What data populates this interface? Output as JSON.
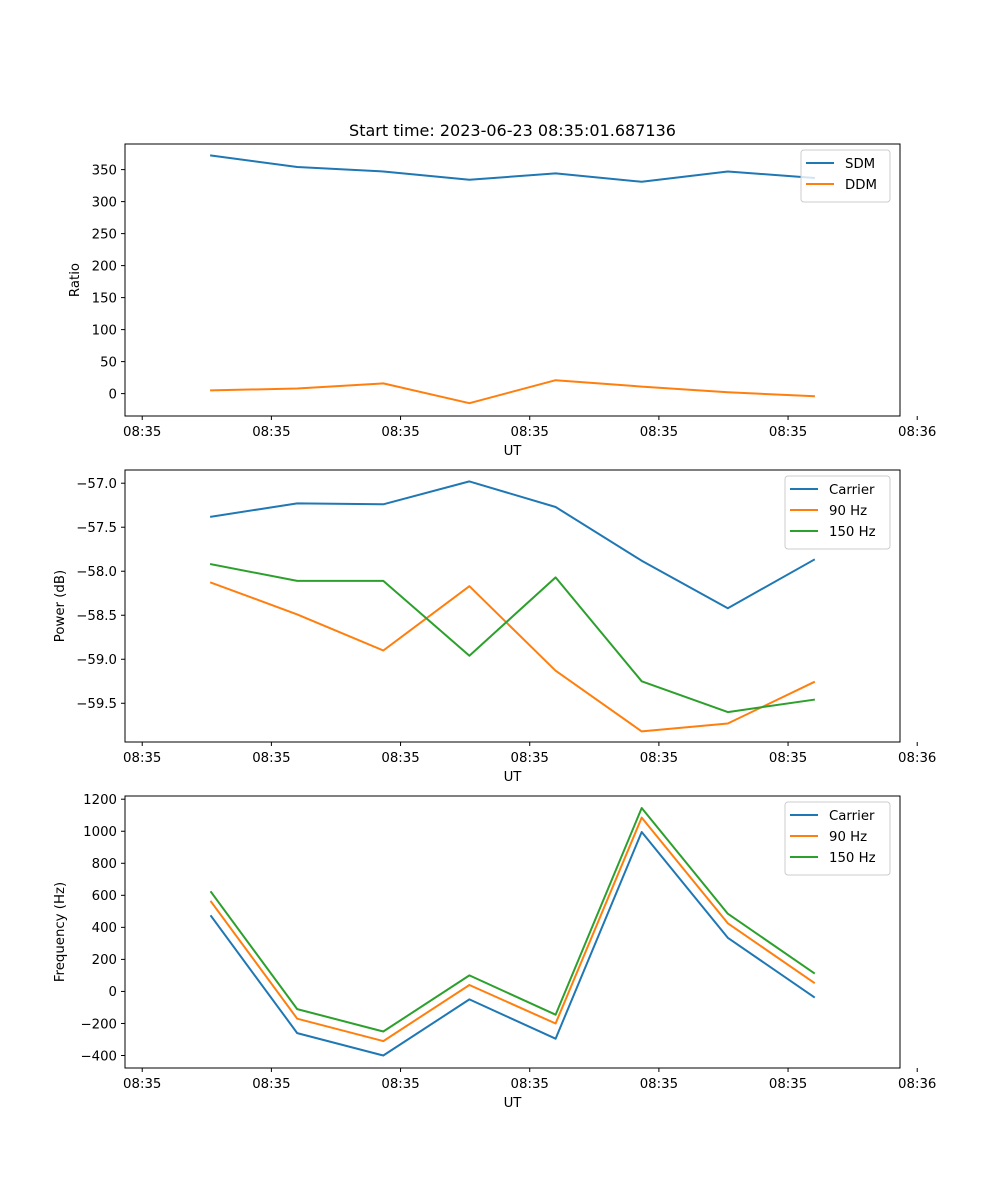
{
  "figure": {
    "title": "Start time: 2023-06-23 08:35:01.687136"
  },
  "chart_data": [
    {
      "type": "line",
      "title": "Start time: 2023-06-23 08:35:01.687136",
      "xlabel": "UT",
      "ylabel": "Ratio",
      "x": [
        1,
        2,
        3,
        4,
        5,
        6,
        7,
        8
      ],
      "xlim": [
        0,
        9
      ],
      "xticks": [
        0.2,
        1.7,
        3.2,
        4.7,
        6.2,
        7.7,
        9.2
      ],
      "xtick_labels": [
        "08:35",
        "08:35",
        "08:35",
        "08:35",
        "08:35",
        "08:35",
        "08:36"
      ],
      "ylim": [
        -35,
        390
      ],
      "yticks": [
        0,
        50,
        100,
        150,
        200,
        250,
        300,
        350
      ],
      "legend": "top-right",
      "grid": false,
      "series": [
        {
          "name": "SDM",
          "color": "#1f77b4",
          "values": [
            372,
            354,
            347,
            334,
            344,
            331,
            347,
            337
          ]
        },
        {
          "name": "DDM",
          "color": "#ff7f0e",
          "values": [
            5,
            8,
            16,
            -15,
            21,
            11,
            2,
            -4
          ]
        }
      ]
    },
    {
      "type": "line",
      "title": "",
      "xlabel": "UT",
      "ylabel": "Power (dB)",
      "x": [
        1,
        2,
        3,
        4,
        5,
        6,
        7,
        8
      ],
      "xlim": [
        0,
        9
      ],
      "xticks": [
        0.2,
        1.7,
        3.2,
        4.7,
        6.2,
        7.7,
        9.2
      ],
      "xtick_labels": [
        "08:35",
        "08:35",
        "08:35",
        "08:35",
        "08:35",
        "08:35",
        "08:36"
      ],
      "ylim": [
        -59.94,
        -56.85
      ],
      "yticks": [
        -59.5,
        -59.0,
        -58.5,
        -58.0,
        -57.5,
        -57.0
      ],
      "ytick_labels": [
        "−59.5",
        "−59.0",
        "−58.5",
        "−58.0",
        "−57.5",
        "−57.0"
      ],
      "legend": "top-right",
      "grid": false,
      "series": [
        {
          "name": "Carrier",
          "color": "#1f77b4",
          "values": [
            -57.38,
            -57.23,
            -57.24,
            -56.98,
            -57.27,
            -57.88,
            -58.42,
            -57.87
          ]
        },
        {
          "name": "90 Hz",
          "color": "#ff7f0e",
          "values": [
            -58.13,
            -58.49,
            -58.9,
            -58.17,
            -59.13,
            -59.82,
            -59.73,
            -59.26
          ]
        },
        {
          "name": "150 Hz",
          "color": "#2ca02c",
          "values": [
            -57.92,
            -58.11,
            -58.11,
            -58.96,
            -58.07,
            -59.25,
            -59.6,
            -59.46
          ]
        }
      ]
    },
    {
      "type": "line",
      "title": "",
      "xlabel": "UT",
      "ylabel": "Frequency (Hz)",
      "x": [
        1,
        2,
        3,
        4,
        5,
        6,
        7,
        8
      ],
      "xlim": [
        0,
        9
      ],
      "xticks": [
        0.2,
        1.7,
        3.2,
        4.7,
        6.2,
        7.7,
        9.2
      ],
      "xtick_labels": [
        "08:35",
        "08:35",
        "08:35",
        "08:35",
        "08:35",
        "08:35",
        "08:36"
      ],
      "ylim": [
        -478,
        1220
      ],
      "yticks": [
        -400,
        -200,
        0,
        200,
        400,
        600,
        800,
        1000,
        1200
      ],
      "ytick_labels": [
        "−400",
        "−200",
        "0",
        "200",
        "400",
        "600",
        "800",
        "1000",
        "1200"
      ],
      "legend": "top-right",
      "grid": false,
      "series": [
        {
          "name": "Carrier",
          "color": "#1f77b4",
          "values": [
            470,
            -260,
            -400,
            -50,
            -295,
            995,
            335,
            -35
          ]
        },
        {
          "name": "90 Hz",
          "color": "#ff7f0e",
          "values": [
            560,
            -170,
            -310,
            40,
            -200,
            1085,
            425,
            55
          ]
        },
        {
          "name": "150 Hz",
          "color": "#2ca02c",
          "values": [
            620,
            -110,
            -250,
            100,
            -145,
            1145,
            485,
            115
          ]
        }
      ]
    }
  ]
}
